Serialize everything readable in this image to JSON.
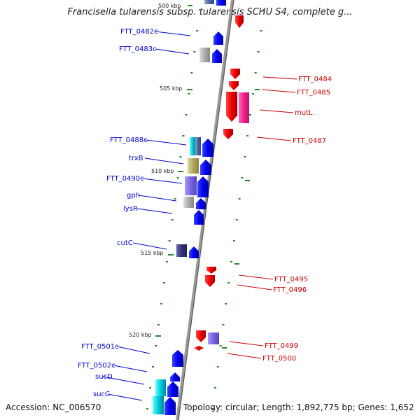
{
  "title": "Francisella tularensis subsp. tularensis SCHU S4, complete g...",
  "footer": {
    "accession": "Accession: NC_006570",
    "info": "Topology: circular; Length: 1,892,775 bp; Genes: 1,652"
  },
  "colors": {
    "forward": "#0000ee",
    "reverse": "#ee0000",
    "backbone": "#888888",
    "tick": "#228b22"
  },
  "kbp_labels": [
    "500 kbp",
    "505 kbp",
    "510 kbp",
    "515 kbp",
    "520 kbp"
  ],
  "left_labels": [
    "FTT_0482c",
    "FTT_0483c",
    "FTT_0488c",
    "trxB",
    "FTT_0490c",
    "gph",
    "lysR",
    "cutC",
    "FTT_0501c",
    "FTT_0502c",
    "sucD",
    "sucC"
  ],
  "right_labels": [
    "FTT_0484",
    "FTT_0485",
    "mutL",
    "FTT_0487",
    "FTT_0495",
    "FTT_0496",
    "FTT_0499",
    "FTT_0500"
  ]
}
